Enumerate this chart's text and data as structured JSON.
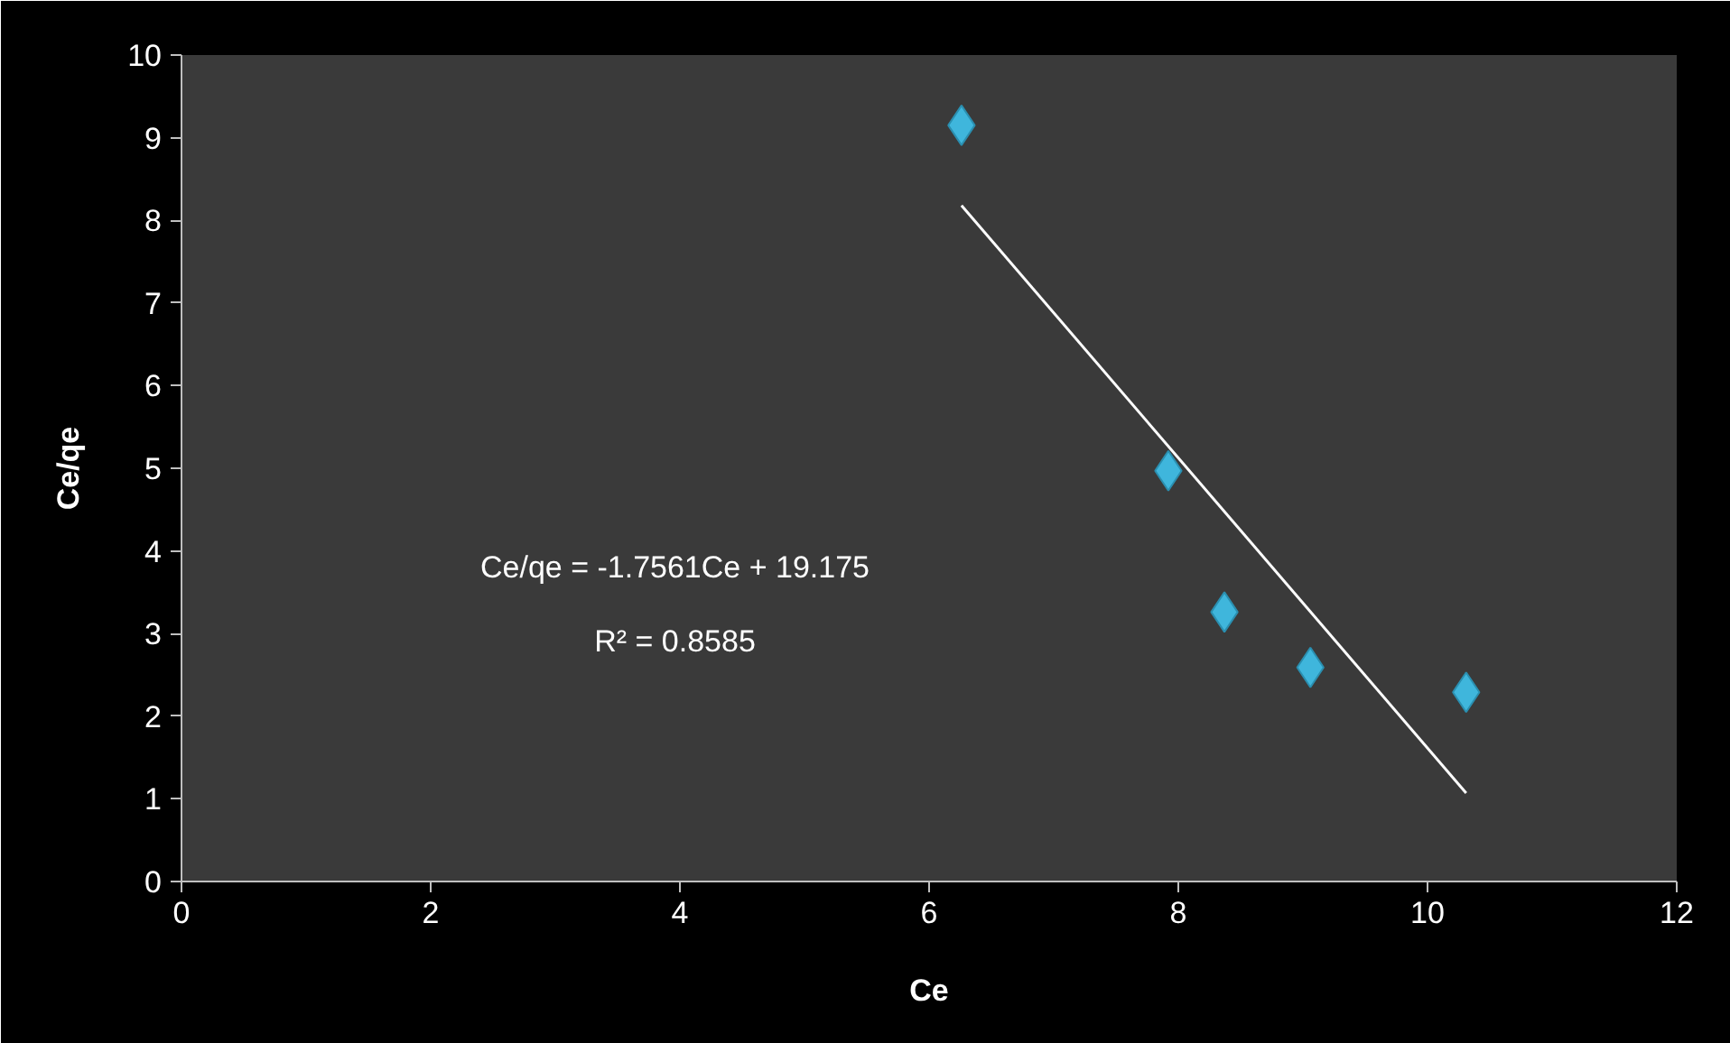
{
  "chart_data": {
    "type": "scatter",
    "xlabel": "Ce",
    "ylabel": "Ce/qe",
    "xlim": [
      0,
      12
    ],
    "ylim": [
      0,
      10
    ],
    "xticks": [
      0,
      2,
      4,
      6,
      8,
      10,
      12
    ],
    "yticks": [
      0,
      1,
      2,
      3,
      4,
      5,
      6,
      7,
      8,
      9,
      10
    ],
    "grid": false,
    "series": [
      {
        "marker": "diamond",
        "color": "#3fb6dc",
        "x": [
          6.26,
          7.92,
          8.37,
          9.06,
          10.31
        ],
        "values": [
          9.15,
          4.97,
          3.26,
          2.59,
          2.29
        ]
      },
      {
        "type": "line",
        "marker": "none",
        "color": "#ffffff",
        "x": [
          6.26,
          10.31
        ],
        "values": [
          8.18,
          1.07
        ]
      }
    ],
    "annotations": [
      "Ce/qe = -1.7561Ce + 19.175",
      "R² = 0.8585"
    ]
  }
}
